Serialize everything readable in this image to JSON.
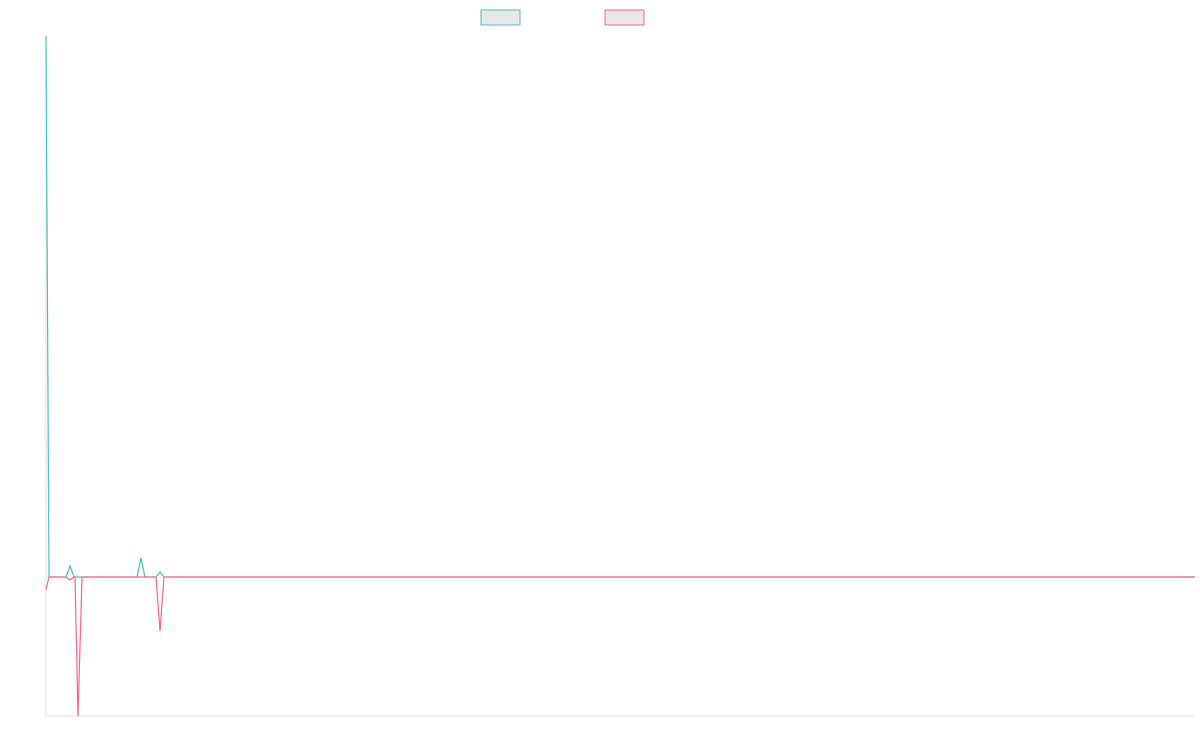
{
  "chart_data": {
    "type": "line",
    "x": [
      0,
      3,
      20,
      24,
      28,
      29,
      32,
      36,
      91,
      95,
      99,
      110,
      114,
      118,
      1149
    ],
    "xlim": [
      0,
      1149
    ],
    "ylim": [
      -139,
      541
    ],
    "series": [
      {
        "color": "#4bc0c0",
        "values": [
          541,
          0,
          0,
          11,
          0,
          0,
          0,
          0,
          0,
          19,
          0,
          0,
          5,
          0,
          0
        ]
      },
      {
        "color": "#ff6384",
        "values": [
          -13,
          0,
          0,
          -3,
          0,
          0,
          -139,
          0,
          0,
          0,
          0,
          0,
          -54,
          0,
          0
        ]
      }
    ]
  }
}
